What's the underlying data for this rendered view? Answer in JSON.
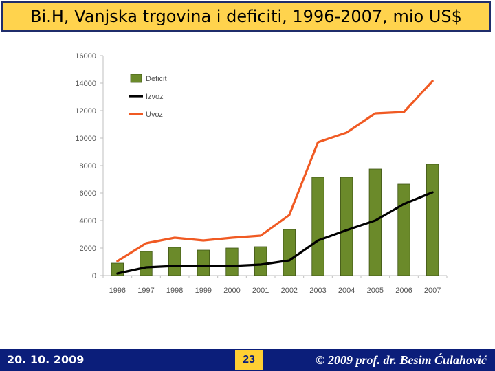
{
  "header": {
    "title": "Bi.H, Vanjska trgovina i deficiti,  1996-2007, mio US$"
  },
  "footer": {
    "date": "20. 10. 2009",
    "page_number": "23",
    "copyright": "© 2009 prof. dr. Besim Ćulahović"
  },
  "chart_data": {
    "type": "bar",
    "title": "",
    "xlabel": "",
    "ylabel": "",
    "categories": [
      "1996",
      "1997",
      "1998",
      "1999",
      "2000",
      "2001",
      "2002",
      "2003",
      "2004",
      "2005",
      "2006",
      "2007"
    ],
    "ylim": [
      0,
      16000
    ],
    "yticks": [
      0,
      2000,
      4000,
      6000,
      8000,
      10000,
      12000,
      14000,
      16000
    ],
    "grid": false,
    "legend_position": "top-left",
    "series": [
      {
        "name": "Deficit",
        "kind": "bar",
        "color": "#6b8a2a",
        "values": [
          900,
          1750,
          2050,
          1850,
          2000,
          2100,
          3350,
          7150,
          7150,
          7750,
          6650,
          8100
        ]
      },
      {
        "name": "Izvoz",
        "kind": "line",
        "color": "#000000",
        "values": [
          150,
          600,
          700,
          700,
          700,
          800,
          1100,
          2550,
          3300,
          4000,
          5200,
          6050
        ]
      },
      {
        "name": "Uvoz",
        "kind": "line",
        "color": "#f05a23",
        "values": [
          1050,
          2350,
          2750,
          2550,
          2750,
          2900,
          4400,
          9700,
          10400,
          11800,
          11900,
          14150
        ]
      }
    ]
  }
}
